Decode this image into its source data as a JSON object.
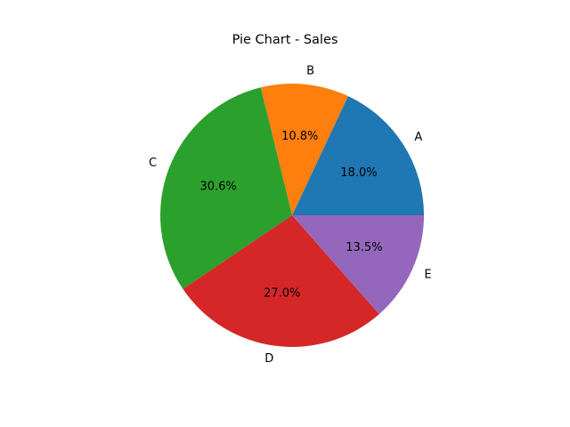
{
  "chart_data": {
    "type": "pie",
    "title": "Pie Chart - Sales",
    "categories": [
      "A",
      "B",
      "C",
      "D",
      "E"
    ],
    "values": [
      18.0,
      10.8,
      30.6,
      27.0,
      13.5
    ],
    "percent_labels": [
      "18.0%",
      "10.8%",
      "30.6%",
      "27.0%",
      "13.5%"
    ],
    "colors": [
      "#1f77b4",
      "#ff7f0e",
      "#2ca02c",
      "#d62728",
      "#9467bd"
    ],
    "start_angle_deg": 0,
    "direction": "counterclockwise",
    "legend": "none"
  }
}
